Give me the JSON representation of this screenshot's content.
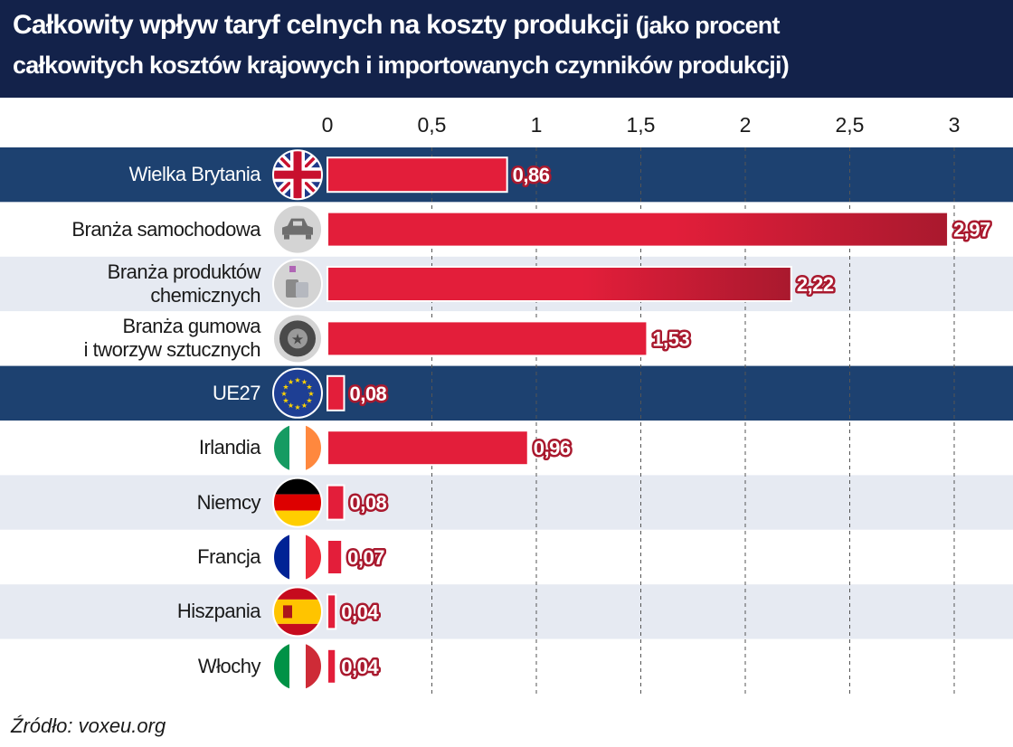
{
  "header": {
    "title": "Całkowity wpływ taryf celnych na koszty produkcji",
    "subtitle_part1": "(jako procent",
    "subtitle_part2": "całkowitych kosztów krajowych i importowanych czynników produkcji)"
  },
  "source": "Źródło: voxeu.org",
  "colors": {
    "header_bg": "#13224a",
    "highlight_row": "#1d4170",
    "alt_row": "#e6eaf2",
    "bar": "#e31e3a",
    "bar_dark": "#a9192e",
    "label_outline": "#a9192e"
  },
  "chart_data": {
    "type": "bar",
    "orientation": "horizontal",
    "categories": [
      "Wielka Brytania",
      "Branża samochodowa",
      "Branża produktów chemicznych",
      "Branża gumowa i tworzyw sztucznych",
      "UE27",
      "Irlandia",
      "Niemcy",
      "Francja",
      "Hiszpania",
      "Włochy"
    ],
    "category_lines": [
      [
        "Wielka Brytania"
      ],
      [
        "Branża samochodowa"
      ],
      [
        "Branża produktów",
        "chemicznych"
      ],
      [
        "Branża gumowa",
        "i tworzyw sztucznych"
      ],
      [
        "UE27"
      ],
      [
        "Irlandia"
      ],
      [
        "Niemcy"
      ],
      [
        "Francja"
      ],
      [
        "Hiszpania"
      ],
      [
        "Włochy"
      ]
    ],
    "values": [
      0.86,
      2.97,
      2.22,
      1.53,
      0.08,
      0.96,
      0.08,
      0.07,
      0.04,
      0.04
    ],
    "value_labels": [
      "0,86",
      "2,97",
      "2,22",
      "1,53",
      "0,08",
      "0,96",
      "0,08",
      "0,07",
      "0,04",
      "0,04"
    ],
    "row_style": [
      "highlight",
      "plain",
      "alt",
      "plain",
      "highlight",
      "plain",
      "alt",
      "plain",
      "alt",
      "plain"
    ],
    "icons": [
      "uk-flag-icon",
      "car-icon",
      "chemical-bottles-icon",
      "tire-icon",
      "eu-flag-icon",
      "ireland-flag-icon",
      "germany-flag-icon",
      "france-flag-icon",
      "spain-flag-icon",
      "italy-flag-icon"
    ],
    "x_ticks": [
      0,
      0.5,
      1,
      1.5,
      2,
      2.5,
      3
    ],
    "x_tick_labels": [
      "0",
      "0,5",
      "1",
      "1,5",
      "2",
      "2,5",
      "3"
    ],
    "xlim": [
      0,
      3.15
    ],
    "grid": "vertical dashed",
    "legend": "none"
  }
}
